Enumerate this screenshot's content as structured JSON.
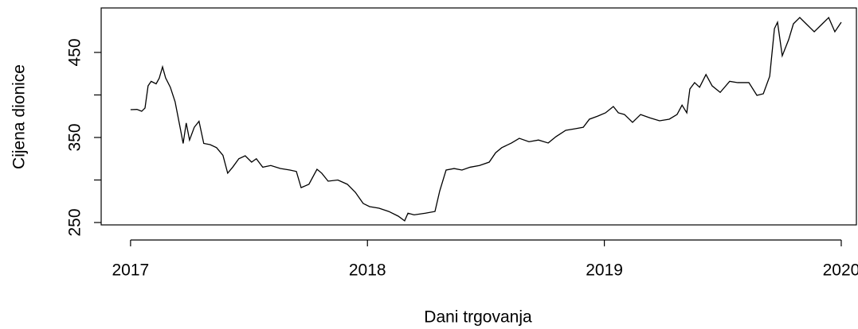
{
  "chart_data": {
    "type": "line",
    "xlabel": "Dani trgovanja",
    "ylabel": "Cijena dionice",
    "xlim": [
      2016.876,
      2020.064
    ],
    "ylim": [
      247.2,
      502.3
    ],
    "xticks": [
      2017,
      2018,
      2019,
      2020
    ],
    "yticks": [
      250,
      {
        "value": 300,
        "label": null
      },
      350,
      {
        "value": 400,
        "label": null
      },
      450
    ],
    "series": [
      {
        "color": "#000000",
        "x": [
          2017.0,
          2017.027,
          2017.047,
          2017.061,
          2017.074,
          2017.087,
          2017.108,
          2017.121,
          2017.135,
          2017.148,
          2017.168,
          2017.188,
          2017.209,
          2017.222,
          2017.235,
          2017.249,
          2017.269,
          2017.289,
          2017.309,
          2017.336,
          2017.363,
          2017.39,
          2017.41,
          2017.431,
          2017.457,
          2017.484,
          2017.511,
          2017.531,
          2017.558,
          2017.592,
          2017.632,
          2017.673,
          2017.7,
          2017.72,
          2017.753,
          2017.787,
          2017.807,
          2017.834,
          2017.875,
          2017.915,
          2017.949,
          2017.982,
          2018.009,
          2018.049,
          2018.09,
          2018.13,
          2018.157,
          2018.171,
          2018.197,
          2018.245,
          2018.285,
          2018.305,
          2018.332,
          2018.366,
          2018.399,
          2018.433,
          2018.473,
          2018.514,
          2018.541,
          2018.567,
          2018.608,
          2018.641,
          2018.682,
          2018.722,
          2018.763,
          2018.796,
          2018.837,
          2018.877,
          2018.911,
          2018.937,
          2018.971,
          2019.005,
          2019.038,
          2019.059,
          2019.085,
          2019.119,
          2019.153,
          2019.193,
          2019.233,
          2019.274,
          2019.307,
          2019.328,
          2019.348,
          2019.361,
          2019.381,
          2019.402,
          2019.429,
          2019.455,
          2019.489,
          2019.529,
          2019.563,
          2019.61,
          2019.644,
          2019.671,
          2019.698,
          2019.718,
          2019.731,
          2019.751,
          2019.778,
          2019.798,
          2019.825,
          2019.852,
          2019.886,
          2019.92,
          2019.947,
          2019.973,
          2020.0
        ],
        "values": [
          382.7,
          383.0,
          380.8,
          384.6,
          410.7,
          416.0,
          413.1,
          419.6,
          433.0,
          420.0,
          409.0,
          392.0,
          362.0,
          343.0,
          367.0,
          347.0,
          362.0,
          369.0,
          343.0,
          341.6,
          338.0,
          329.0,
          308.0,
          315.0,
          325.0,
          328.5,
          321.0,
          325.0,
          315.0,
          317.0,
          313.5,
          311.7,
          310.0,
          291.0,
          295.0,
          312.6,
          308.0,
          298.6,
          300.0,
          295.0,
          285.5,
          272.4,
          268.7,
          266.8,
          263.0,
          257.5,
          252.0,
          261.0,
          259.0,
          261.0,
          263.0,
          287.0,
          311.7,
          313.5,
          311.7,
          315.0,
          317.0,
          321.0,
          332.0,
          338.0,
          343.5,
          349.0,
          345.0,
          347.0,
          343.5,
          351.0,
          358.4,
          360.3,
          362.0,
          371.5,
          375.0,
          379.0,
          386.4,
          379.0,
          377.0,
          367.8,
          377.0,
          373.0,
          369.6,
          371.5,
          377.0,
          388.0,
          379.0,
          407.0,
          414.5,
          409.0,
          424.0,
          410.7,
          403.0,
          416.0,
          414.5,
          414.5,
          399.5,
          401.4,
          422.0,
          478.0,
          485.5,
          446.0,
          465.0,
          483.6,
          491.0,
          483.6,
          474.3,
          483.6,
          491.0,
          474.3,
          485.5
        ]
      }
    ]
  }
}
